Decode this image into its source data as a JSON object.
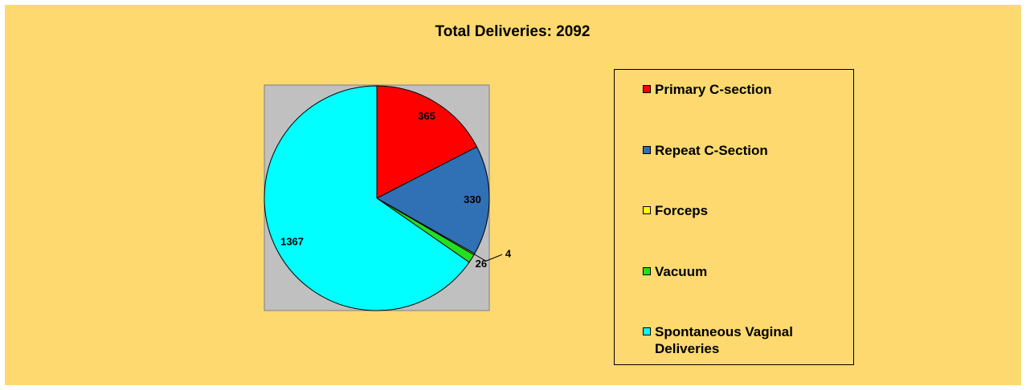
{
  "chart_data": {
    "type": "pie",
    "title": "Total Deliveries: 2092",
    "categories": [
      "Primary C-section",
      "Repeat C-Section",
      "Forceps",
      "Vacuum",
      "Spontaneous Vaginal Deliveries"
    ],
    "values": [
      365,
      330,
      4,
      26,
      1367
    ],
    "colors": [
      "#ff0000",
      "#3070b4",
      "#ffff00",
      "#22e022",
      "#00ffff"
    ],
    "plot_background": "#c0c0c0",
    "legend": "right"
  }
}
